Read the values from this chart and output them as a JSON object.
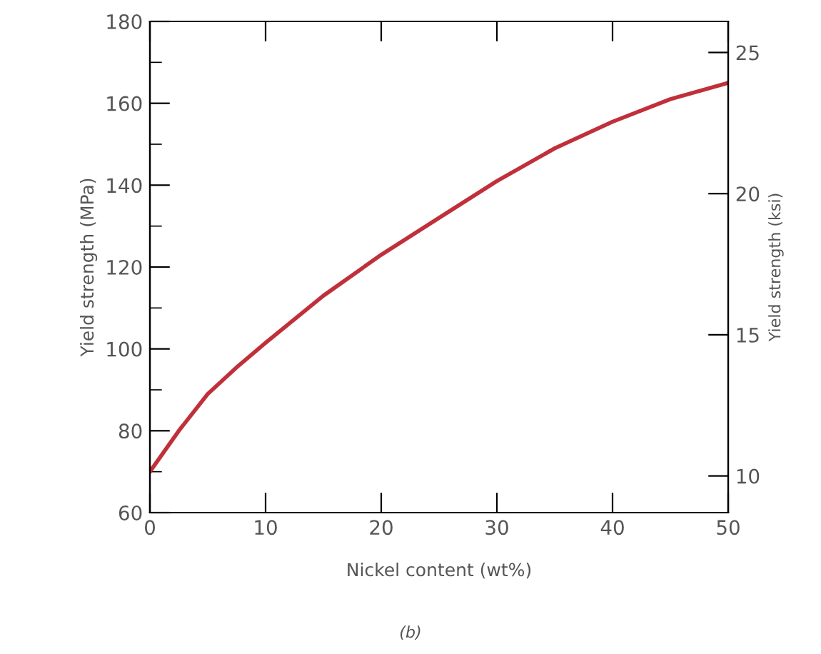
{
  "chart_data": {
    "type": "line",
    "xlabel": "Nickel content (wt%)",
    "ylabel": "Yield strength (MPa)",
    "y2label": "Yield strength (ksi)",
    "x": [
      0,
      2.5,
      5,
      7.5,
      10,
      15,
      20,
      25,
      30,
      35,
      40,
      45,
      50
    ],
    "series": [
      {
        "color": "#c0303a",
        "values": [
          70,
          80,
          89,
          95.5,
          101.5,
          113,
          123,
          132,
          141,
          149,
          155.5,
          161,
          165
        ]
      }
    ],
    "xlim": [
      0,
      50
    ],
    "xticks": [
      0,
      10,
      20,
      30,
      40,
      50
    ],
    "ylim": [
      60,
      180
    ],
    "yticks": [
      60,
      80,
      100,
      120,
      140,
      160,
      180
    ],
    "y2lim": [
      8.7,
      26.1
    ],
    "y2ticks": [
      10,
      15,
      20,
      25
    ],
    "grid": false,
    "legend": false,
    "marker": "none",
    "line_style": "solid",
    "annotations": [
      "(b)"
    ]
  }
}
